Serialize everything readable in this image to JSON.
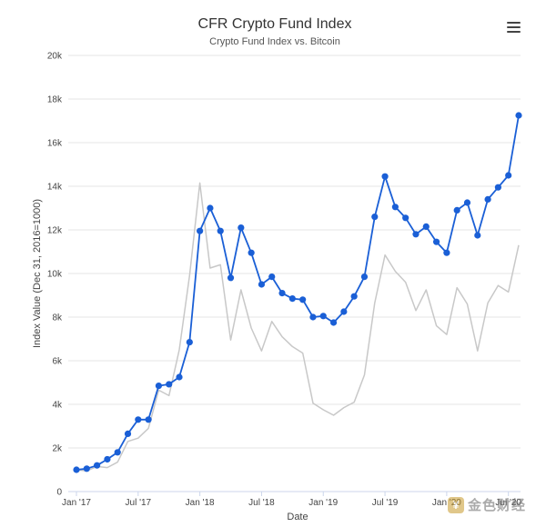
{
  "menu_icon": "hamburger-menu-icon",
  "watermark": {
    "icon": "coin-logo-icon",
    "text": "金色财经"
  },
  "chart_data": {
    "type": "line",
    "title": "CFR Crypto Fund Index",
    "subtitle": "Crypto Fund Index vs. Bitcoin",
    "xlabel": "Date",
    "ylabel": "Index Value (Dec 31, 2016=1000)",
    "ylim": [
      0,
      20000
    ],
    "yticks": [
      0,
      2000,
      4000,
      6000,
      8000,
      10000,
      12000,
      14000,
      16000,
      18000,
      20000
    ],
    "ytick_labels": [
      "0",
      "2k",
      "4k",
      "6k",
      "8k",
      "10k",
      "12k",
      "14k",
      "16k",
      "18k",
      "20k"
    ],
    "xlim": [
      0,
      43
    ],
    "xticks": [
      0,
      6,
      12,
      18,
      24,
      30,
      36,
      42
    ],
    "xtick_labels": [
      "Jan '17",
      "Jul '17",
      "Jan '18",
      "Jul '18",
      "Jan '19",
      "Jul '19",
      "Jan '20",
      "Jul '20"
    ],
    "grid": true,
    "legend": "none",
    "colors": {
      "fund": "#1a5fd6",
      "bitcoin": "#c8c8c8"
    },
    "series": [
      {
        "key": "fund",
        "x": [
          0,
          1,
          2,
          3,
          4,
          5,
          6,
          7,
          8,
          9,
          10,
          11,
          12,
          13,
          14,
          15,
          16,
          17,
          18,
          19,
          20,
          21,
          22,
          23,
          24,
          25,
          26,
          27,
          28,
          29,
          30,
          31,
          32,
          33,
          34,
          35,
          36,
          37,
          38,
          39,
          40,
          41,
          42,
          43
        ],
        "values": [
          1000,
          1050,
          1200,
          1480,
          1800,
          2650,
          3300,
          3300,
          4850,
          4920,
          5250,
          6850,
          11950,
          13000,
          11950,
          9800,
          12100,
          10950,
          9500,
          9850,
          9100,
          8850,
          8800,
          8000,
          8050,
          7750,
          8250,
          8950,
          9850,
          12600,
          14450,
          13050,
          12550,
          11800,
          12150,
          11450,
          10950,
          12900,
          13250,
          11750,
          13400,
          13950,
          14500,
          17250
        ]
      },
      {
        "key": "bitcoin",
        "x": [
          0,
          1,
          2,
          3,
          4,
          5,
          6,
          7,
          8,
          9,
          10,
          11,
          12,
          13,
          14,
          15,
          16,
          17,
          18,
          19,
          20,
          21,
          22,
          23,
          24,
          25,
          26,
          27,
          28,
          29,
          30,
          31,
          32,
          33,
          34,
          35,
          36,
          37,
          38,
          39,
          40,
          41,
          42,
          43
        ],
        "values": [
          1000,
          950,
          1150,
          1100,
          1350,
          2300,
          2450,
          2900,
          4650,
          4400,
          6500,
          9900,
          14150,
          10250,
          10400,
          6950,
          9250,
          7500,
          6450,
          7800,
          7100,
          6650,
          6350,
          4050,
          3750,
          3500,
          3850,
          4100,
          5350,
          8650,
          10850,
          10100,
          9600,
          8300,
          9250,
          7600,
          7200,
          9350,
          8600,
          6450,
          8650,
          9450,
          9150,
          11300
        ]
      }
    ]
  }
}
